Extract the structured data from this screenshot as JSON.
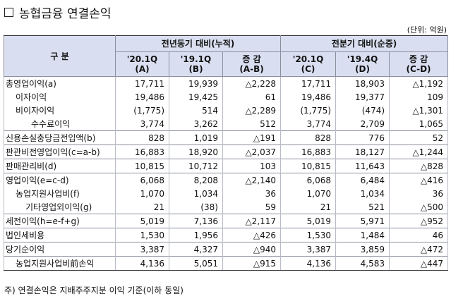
{
  "title": "농협금융 연결손익",
  "unit": "(단위: 억원)",
  "header": {
    "category": "구 분",
    "group_yoy": "전년동기 대비(누적)",
    "group_qoq": "전분기 대비(순증)",
    "cols": [
      {
        "top": "'20.1Q",
        "bottom": "(A)"
      },
      {
        "top": "'19.1Q",
        "bottom": "(B)"
      },
      {
        "top": "증 감",
        "bottom": "(A-B)"
      },
      {
        "top": "'20.1Q",
        "bottom": "(C)"
      },
      {
        "top": "'19.4Q",
        "bottom": "(D)"
      },
      {
        "top": "증 감",
        "bottom": "(C-D)"
      }
    ]
  },
  "rows": [
    {
      "label": "총영업이익(a)",
      "values": [
        "17,711",
        "19,939",
        "△2,228",
        "17,711",
        "18,903",
        "△1,192"
      ]
    },
    {
      "label": "이자이익",
      "values": [
        "19,486",
        "19,425",
        "61",
        "19,486",
        "19,377",
        "109"
      ]
    },
    {
      "label": "비이자이익",
      "values": [
        "(1,775)",
        "514",
        "△2,289",
        "(1,775)",
        "(474)",
        "△1,301"
      ]
    },
    {
      "label": "수수료이익",
      "values": [
        "3,774",
        "3,262",
        "512",
        "3,774",
        "2,709",
        "1,065"
      ]
    },
    {
      "label": "신용손실충당금전입액(b)",
      "values": [
        "828",
        "1,019",
        "△191",
        "828",
        "776",
        "52"
      ]
    },
    {
      "label": "판관비전영업이익(c=a-b)",
      "values": [
        "16,883",
        "18,920",
        "△2,037",
        "16,883",
        "18,127",
        "△1,244"
      ]
    },
    {
      "label": "판매관리비(d)",
      "values": [
        "10,815",
        "10,712",
        "103",
        "10,815",
        "11,643",
        "△828"
      ]
    },
    {
      "label": "영업이익(e=c-d)",
      "values": [
        "6,068",
        "8,208",
        "△2,140",
        "6,068",
        "6,484",
        "△416"
      ]
    },
    {
      "label": "농업지원사업비(f)",
      "values": [
        "1,070",
        "1,034",
        "36",
        "1,070",
        "1,034",
        "36"
      ]
    },
    {
      "label": "기타영업외이익(g)",
      "values": [
        "21",
        "(38)",
        "59",
        "21",
        "521",
        "△500"
      ]
    },
    {
      "label": "세전이익(h=e-f+g)",
      "values": [
        "5,019",
        "7,136",
        "△2,117",
        "5,019",
        "5,971",
        "△952"
      ]
    },
    {
      "label": "법인세비용",
      "values": [
        "1,530",
        "1,956",
        "△426",
        "1,530",
        "1,484",
        "46"
      ]
    },
    {
      "label": "당기순이익",
      "values": [
        "3,387",
        "4,327",
        "△940",
        "3,387",
        "3,859",
        "△472"
      ]
    },
    {
      "label": "농업지원사업비前손익",
      "values": [
        "4,136",
        "5,051",
        "△915",
        "4,136",
        "4,583",
        "△447"
      ]
    }
  ],
  "footnote": "주) 연결손익은 지배주주지분 이익 기준(이하 동일)"
}
